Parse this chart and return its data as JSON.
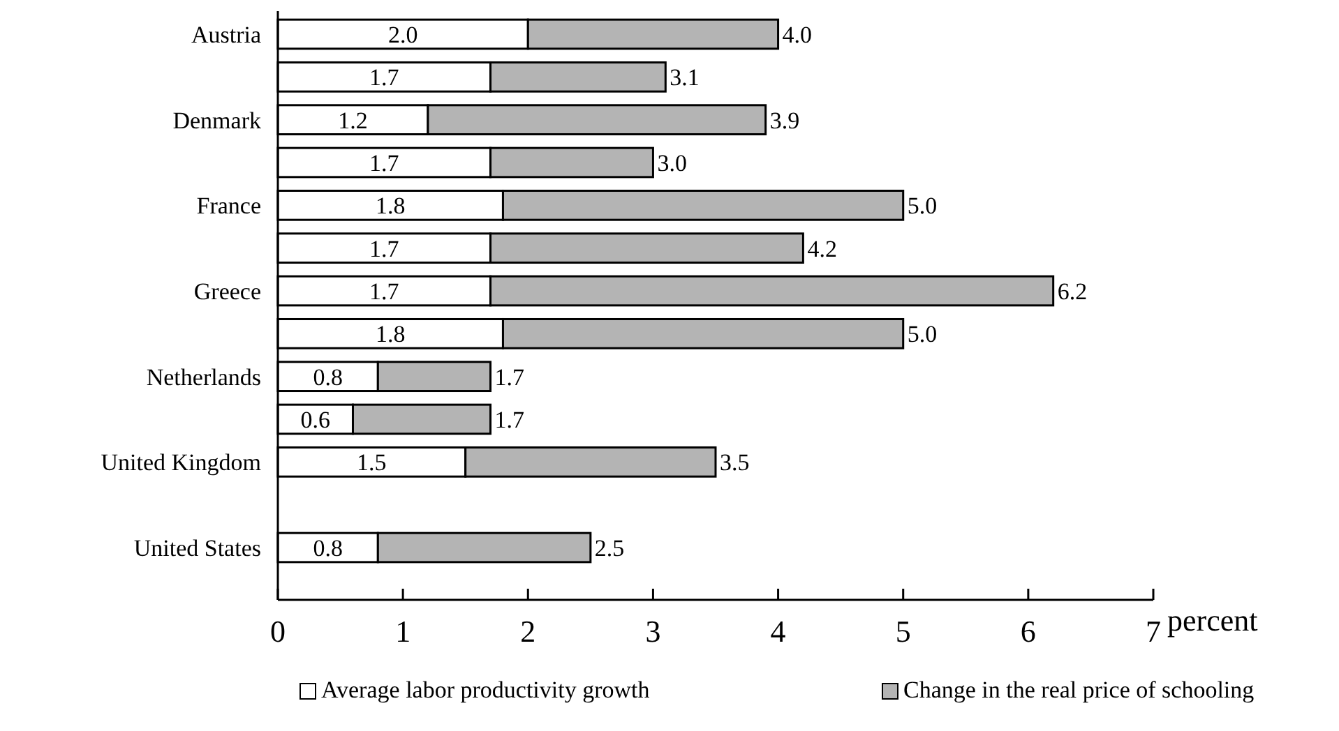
{
  "chart_data": {
    "type": "bar",
    "orientation": "horizontal",
    "stacked": true,
    "categories": [
      "Austria",
      null,
      "Denmark",
      null,
      "France",
      null,
      "Greece",
      null,
      "Netherlands",
      null,
      "United Kingdom",
      null,
      "United States"
    ],
    "series": [
      {
        "name": "Average labor productivity growth",
        "color": "#ffffff",
        "values": [
          2.0,
          1.7,
          1.2,
          1.7,
          1.8,
          1.7,
          1.7,
          1.8,
          0.8,
          0.6,
          1.5,
          null,
          0.8
        ],
        "value_labels": [
          "2.0",
          "1.7",
          "1.2",
          "1.7",
          "1.8",
          "1.7",
          "1.7",
          "1.8",
          "0.8",
          "0.6",
          "1.5",
          null,
          "0.8"
        ]
      },
      {
        "name": "Change in the real price of schooling",
        "color": "#b4b4b4",
        "values": [
          2.0,
          1.4,
          2.7,
          1.3,
          3.2,
          2.5,
          4.5,
          3.2,
          0.9,
          1.1,
          2.0,
          null,
          1.7
        ]
      }
    ],
    "totals": [
      "4.0",
      "3.1",
      "3.9",
      "3.0",
      "5.0",
      "4.2",
      "6.2",
      "5.0",
      "1.7",
      "1.7",
      "3.5",
      null,
      "2.5"
    ],
    "xlim": [
      0,
      7
    ],
    "xticks": [
      0,
      1,
      2,
      3,
      4,
      5,
      6,
      7
    ],
    "xlabel": "percent",
    "legend": "bottom"
  }
}
